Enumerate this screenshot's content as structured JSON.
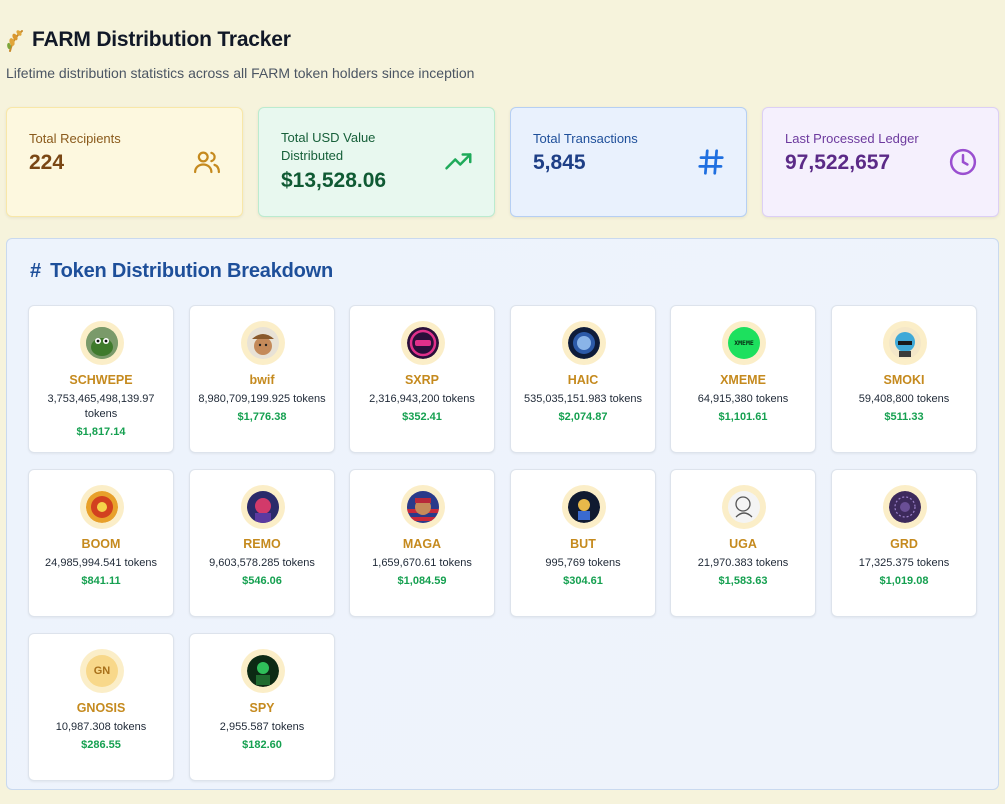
{
  "header": {
    "title": "FARM Distribution Tracker",
    "subtitle": "Lifetime distribution statistics across all FARM token holders since inception"
  },
  "stats": [
    {
      "label": "Total Recipients",
      "value": "224",
      "icon": "users-icon"
    },
    {
      "label": "Total USD Value Distributed",
      "value": "$13,528.06",
      "icon": "trending-up-icon"
    },
    {
      "label": "Total Transactions",
      "value": "5,845",
      "icon": "hash-icon"
    },
    {
      "label": "Last Processed Ledger",
      "value": "97,522,657",
      "icon": "clock-icon"
    }
  ],
  "breakdown": {
    "title": "Token Distribution Breakdown",
    "tokens": [
      {
        "symbol": "SCHWEPE",
        "amount": "3,753,465,498,139.97 tokens",
        "usd": "$1,817.14",
        "color": "#3a6b2a"
      },
      {
        "symbol": "bwif",
        "amount": "8,980,709,199.925 tokens",
        "usd": "$1,776.38",
        "color": "#b06a3a"
      },
      {
        "symbol": "SXRP",
        "amount": "2,316,943,200 tokens",
        "usd": "$352.41",
        "color": "#d7307e"
      },
      {
        "symbol": "HAIC",
        "amount": "535,035,151.983 tokens",
        "usd": "$2,074.87",
        "color": "#1e3c78"
      },
      {
        "symbol": "XMEME",
        "amount": "64,915,380 tokens",
        "usd": "$1,101.61",
        "color": "#18e05a"
      },
      {
        "symbol": "SMOKI",
        "amount": "59,408,800 tokens",
        "usd": "$511.33",
        "color": "#3fa9d8"
      },
      {
        "symbol": "BOOM",
        "amount": "24,985,994.541 tokens",
        "usd": "$841.11",
        "color": "#d2401f"
      },
      {
        "symbol": "REMO",
        "amount": "9,603,578.285 tokens",
        "usd": "$546.06",
        "color": "#5b3aa0"
      },
      {
        "symbol": "MAGA",
        "amount": "1,659,670.61 tokens",
        "usd": "$1,084.59",
        "color": "#b8283a"
      },
      {
        "symbol": "BUT",
        "amount": "995,769 tokens",
        "usd": "$304.61",
        "color": "#1a2a4a"
      },
      {
        "symbol": "UGA",
        "amount": "21,970.383 tokens",
        "usd": "$1,583.63",
        "color": "#c9c9c9"
      },
      {
        "symbol": "GRD",
        "amount": "17,325.375 tokens",
        "usd": "$1,019.08",
        "color": "#3d2a5c"
      },
      {
        "symbol": "GNOSIS",
        "amount": "10,987.308 tokens",
        "usd": "$286.55",
        "color": "#f5c86a",
        "badge": "GN"
      },
      {
        "symbol": "SPY",
        "amount": "2,955.587 tokens",
        "usd": "$182.60",
        "color": "#1f6b2f"
      }
    ]
  },
  "xmeme_logo_text": "XMEME"
}
